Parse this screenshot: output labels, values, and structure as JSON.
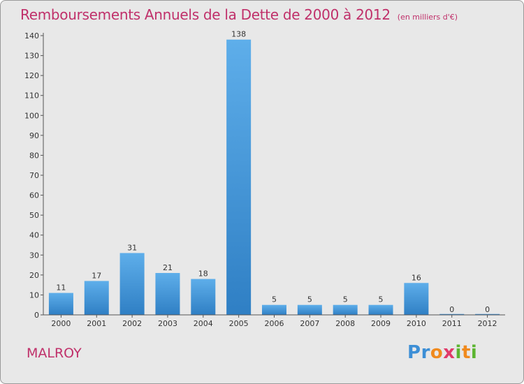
{
  "header": {
    "title": "Remboursements Annuels de la Dette de 2000 à 2012",
    "unit": "(en milliers d'€)"
  },
  "footer": {
    "commune": "MALROY",
    "logo": "Proxiti"
  },
  "colors": {
    "accent": "#c0306a",
    "bar": "#3a8fd6",
    "background": "#e8e8e8"
  },
  "chart_data": {
    "type": "bar",
    "title": "Remboursements Annuels de la Dette de 2000 à 2012",
    "xlabel": "",
    "ylabel": "",
    "categories": [
      "2000",
      "2001",
      "2002",
      "2003",
      "2004",
      "2005",
      "2006",
      "2007",
      "2008",
      "2009",
      "2010",
      "2011",
      "2012"
    ],
    "values": [
      11,
      17,
      31,
      21,
      18,
      138,
      5,
      5,
      5,
      5,
      16,
      0,
      0
    ],
    "ylim": [
      0,
      140
    ],
    "yticks": [
      0,
      10,
      20,
      30,
      40,
      50,
      60,
      70,
      80,
      90,
      100,
      110,
      120,
      130,
      140
    ],
    "grid": false,
    "legend": "none"
  }
}
